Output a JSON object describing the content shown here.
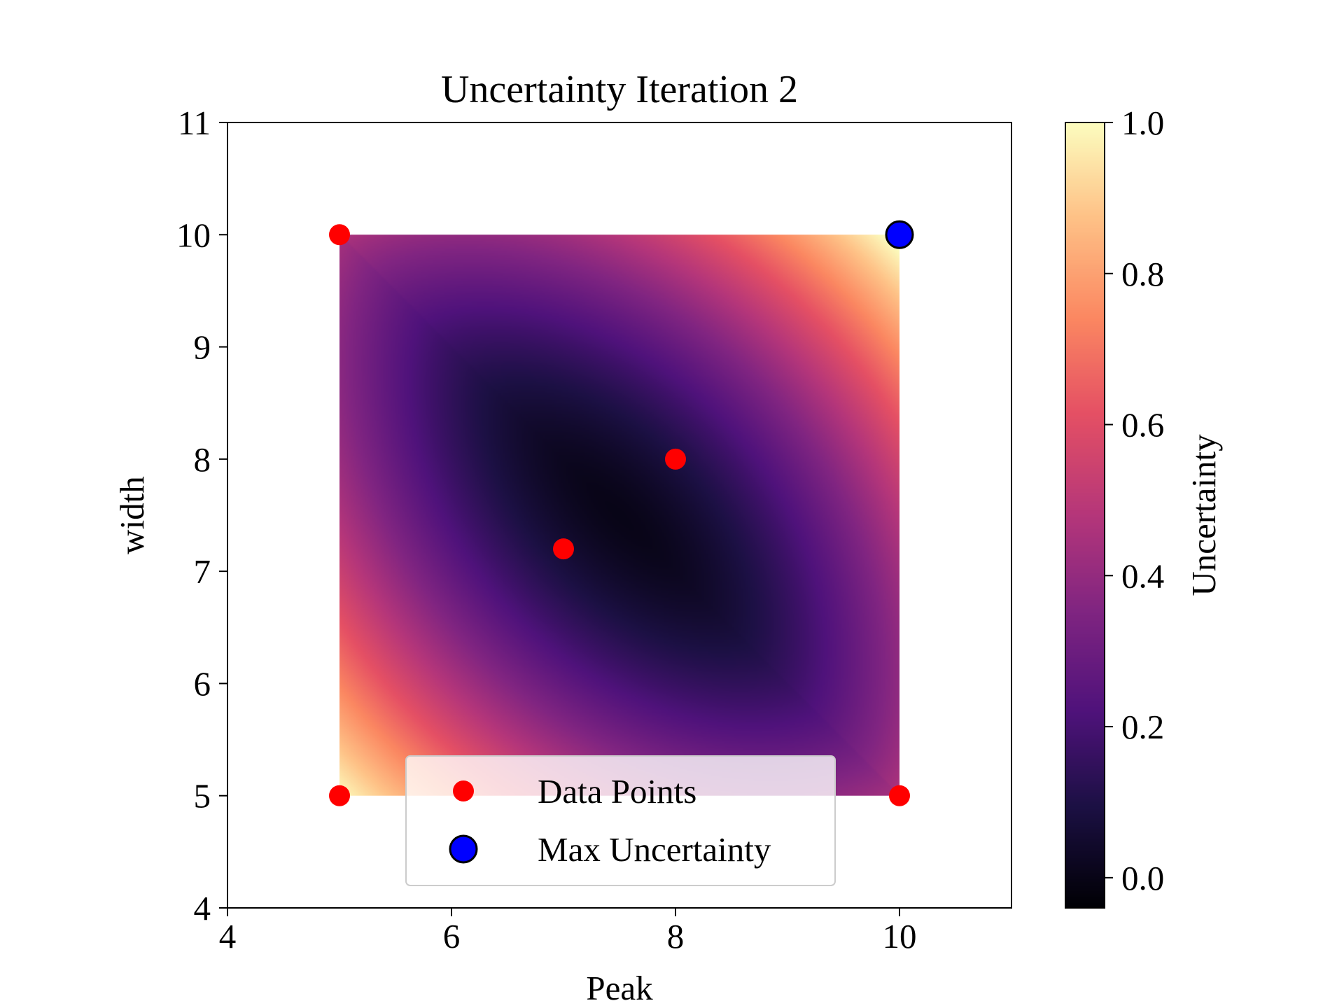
{
  "chart_data": {
    "type": "heatmap",
    "title": "Uncertainty Iteration 2",
    "xlabel": "Peak",
    "ylabel": "width",
    "xlim": [
      4,
      11
    ],
    "ylim": [
      4,
      11
    ],
    "xticks": [
      "4",
      "6",
      "8",
      "10"
    ],
    "yticks": [
      "4",
      "5",
      "6",
      "7",
      "8",
      "9",
      "10",
      "11"
    ],
    "grid": false,
    "heatmap": {
      "x_range": [
        5,
        10
      ],
      "y_range": [
        5,
        10
      ],
      "colormap": "magma",
      "value_range": [
        -0.04,
        1.0
      ],
      "description_values": {
        "corner_top_right": 1.0,
        "corner_bottom_left": 1.0,
        "minimum_near": [
          7.7,
          7.3
        ]
      }
    },
    "colorbar": {
      "label": "Uncertainty",
      "range": [
        -0.04,
        1.0
      ],
      "ticks": [
        "0.0",
        "0.2",
        "0.4",
        "0.6",
        "0.8",
        "1.0"
      ]
    },
    "series": [
      {
        "name": "Data Points",
        "type": "scatter",
        "color": "#ff0000",
        "points": [
          [
            5,
            10
          ],
          [
            7,
            7.2
          ],
          [
            8,
            8
          ],
          [
            5,
            5
          ],
          [
            10,
            5
          ]
        ]
      },
      {
        "name": "Max Uncertainty",
        "type": "scatter",
        "color": "#0000ff",
        "edgecolor": "#000000",
        "points": [
          [
            10,
            10
          ]
        ]
      }
    ],
    "legend": {
      "placement": "lower-center",
      "entries": [
        "Data Points",
        "Max Uncertainty"
      ]
    }
  }
}
